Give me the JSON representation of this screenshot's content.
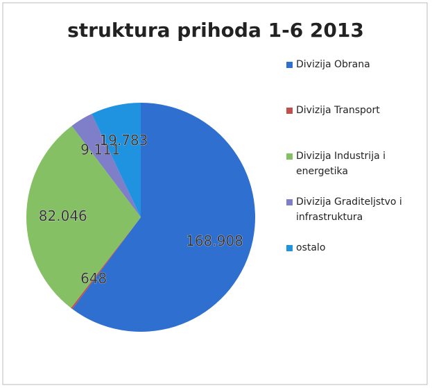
{
  "chart_data": {
    "type": "pie",
    "title": "struktura prihoda 1-6 2013",
    "categories": [
      "Divizija Obrana",
      "Divizija Transport",
      "Divizija Industrija i energetika",
      "Divizija Graditeljstvo i infrastruktura",
      "ostalo"
    ],
    "values": [
      168908,
      648,
      82046,
      9111,
      19783
    ],
    "value_labels": [
      "168.908",
      "648",
      "82.046",
      "9.111",
      "19.783"
    ],
    "colors": [
      "#2f6fcf",
      "#c0504d",
      "#86c064",
      "#7e7ec9",
      "#1f92e0"
    ],
    "legend": "right"
  }
}
